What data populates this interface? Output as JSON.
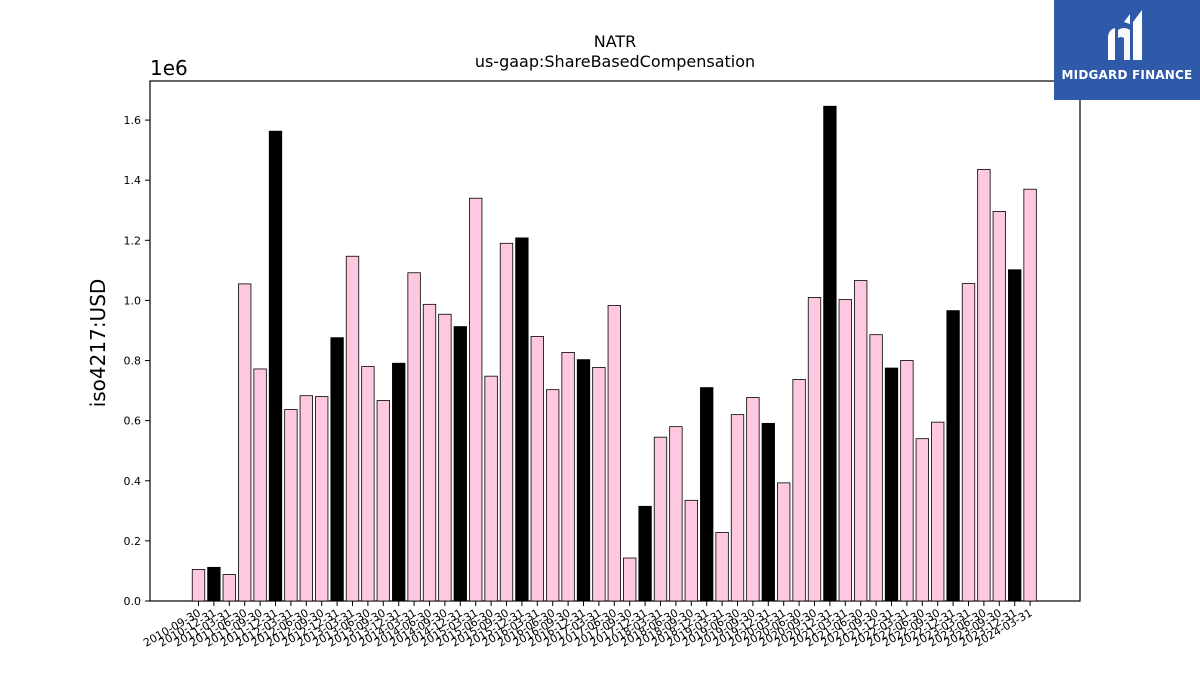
{
  "chart_data": {
    "type": "bar",
    "title": "NATR",
    "subtitle": "us-gaap:ShareBasedCompensation",
    "ylabel": "iso4217:USD",
    "y_offset_label": "1e6",
    "ylim": [
      0,
      1730000
    ],
    "yticks": [
      "0.0",
      "0.2",
      "0.4",
      "0.6",
      "0.8",
      "1.0",
      "1.2",
      "1.4",
      "1.6"
    ],
    "grid": false,
    "colors": {
      "quarter": "#ffc8e1",
      "annual": "#000000",
      "edge": "#000000"
    },
    "categories": [
      "2010-09-30",
      "2010-12-31",
      "2011-03-31",
      "2011-06-30",
      "2011-09-30",
      "2011-12-31",
      "2012-03-31",
      "2012-06-30",
      "2012-09-30",
      "2012-12-31",
      "2013-03-31",
      "2013-06-30",
      "2013-09-30",
      "2013-12-31",
      "2014-03-31",
      "2014-06-30",
      "2014-09-30",
      "2014-12-31",
      "2015-03-31",
      "2015-06-30",
      "2015-09-30",
      "2015-12-31",
      "2016-03-31",
      "2016-06-30",
      "2016-09-30",
      "2016-12-31",
      "2017-03-31",
      "2017-06-30",
      "2017-09-30",
      "2017-12-31",
      "2018-03-31",
      "2018-06-30",
      "2018-09-30",
      "2018-12-31",
      "2019-03-31",
      "2019-06-30",
      "2019-09-30",
      "2019-12-31",
      "2020-03-31",
      "2020-06-30",
      "2020-09-30",
      "2020-12-31",
      "2021-03-31",
      "2021-06-30",
      "2021-09-30",
      "2021-12-31",
      "2022-03-31",
      "2022-06-30",
      "2022-09-30",
      "2022-12-31",
      "2023-03-31",
      "2023-06-30",
      "2023-09-30",
      "2023-12-31",
      "2024-03-31"
    ],
    "values": [
      105000,
      112000,
      88000,
      1055000,
      772000,
      1563000,
      637000,
      683000,
      680000,
      876000,
      1147000,
      780000,
      667000,
      791000,
      1092000,
      987000,
      954000,
      913000,
      1340000,
      748000,
      1190000,
      1208000,
      880000,
      703000,
      827000,
      803000,
      777000,
      983000,
      143000,
      315000,
      545000,
      580000,
      335000,
      710000,
      228000,
      620000,
      677000,
      591000,
      393000,
      737000,
      1010000,
      1646000,
      1003000,
      1066000,
      886000,
      775000,
      800000,
      540000,
      595000,
      966000,
      1056000,
      1436000,
      1296000,
      1102000,
      1370000
    ],
    "annual_flags": [
      false,
      true,
      false,
      false,
      false,
      true,
      false,
      false,
      false,
      true,
      false,
      false,
      false,
      true,
      false,
      false,
      false,
      true,
      false,
      false,
      false,
      true,
      false,
      false,
      false,
      true,
      false,
      false,
      false,
      true,
      false,
      false,
      false,
      true,
      false,
      false,
      false,
      true,
      false,
      false,
      false,
      true,
      false,
      false,
      false,
      true,
      false,
      false,
      false,
      true,
      false,
      false,
      false,
      true,
      false
    ]
  },
  "logo": {
    "text": "MIDGARD FINANCE"
  }
}
